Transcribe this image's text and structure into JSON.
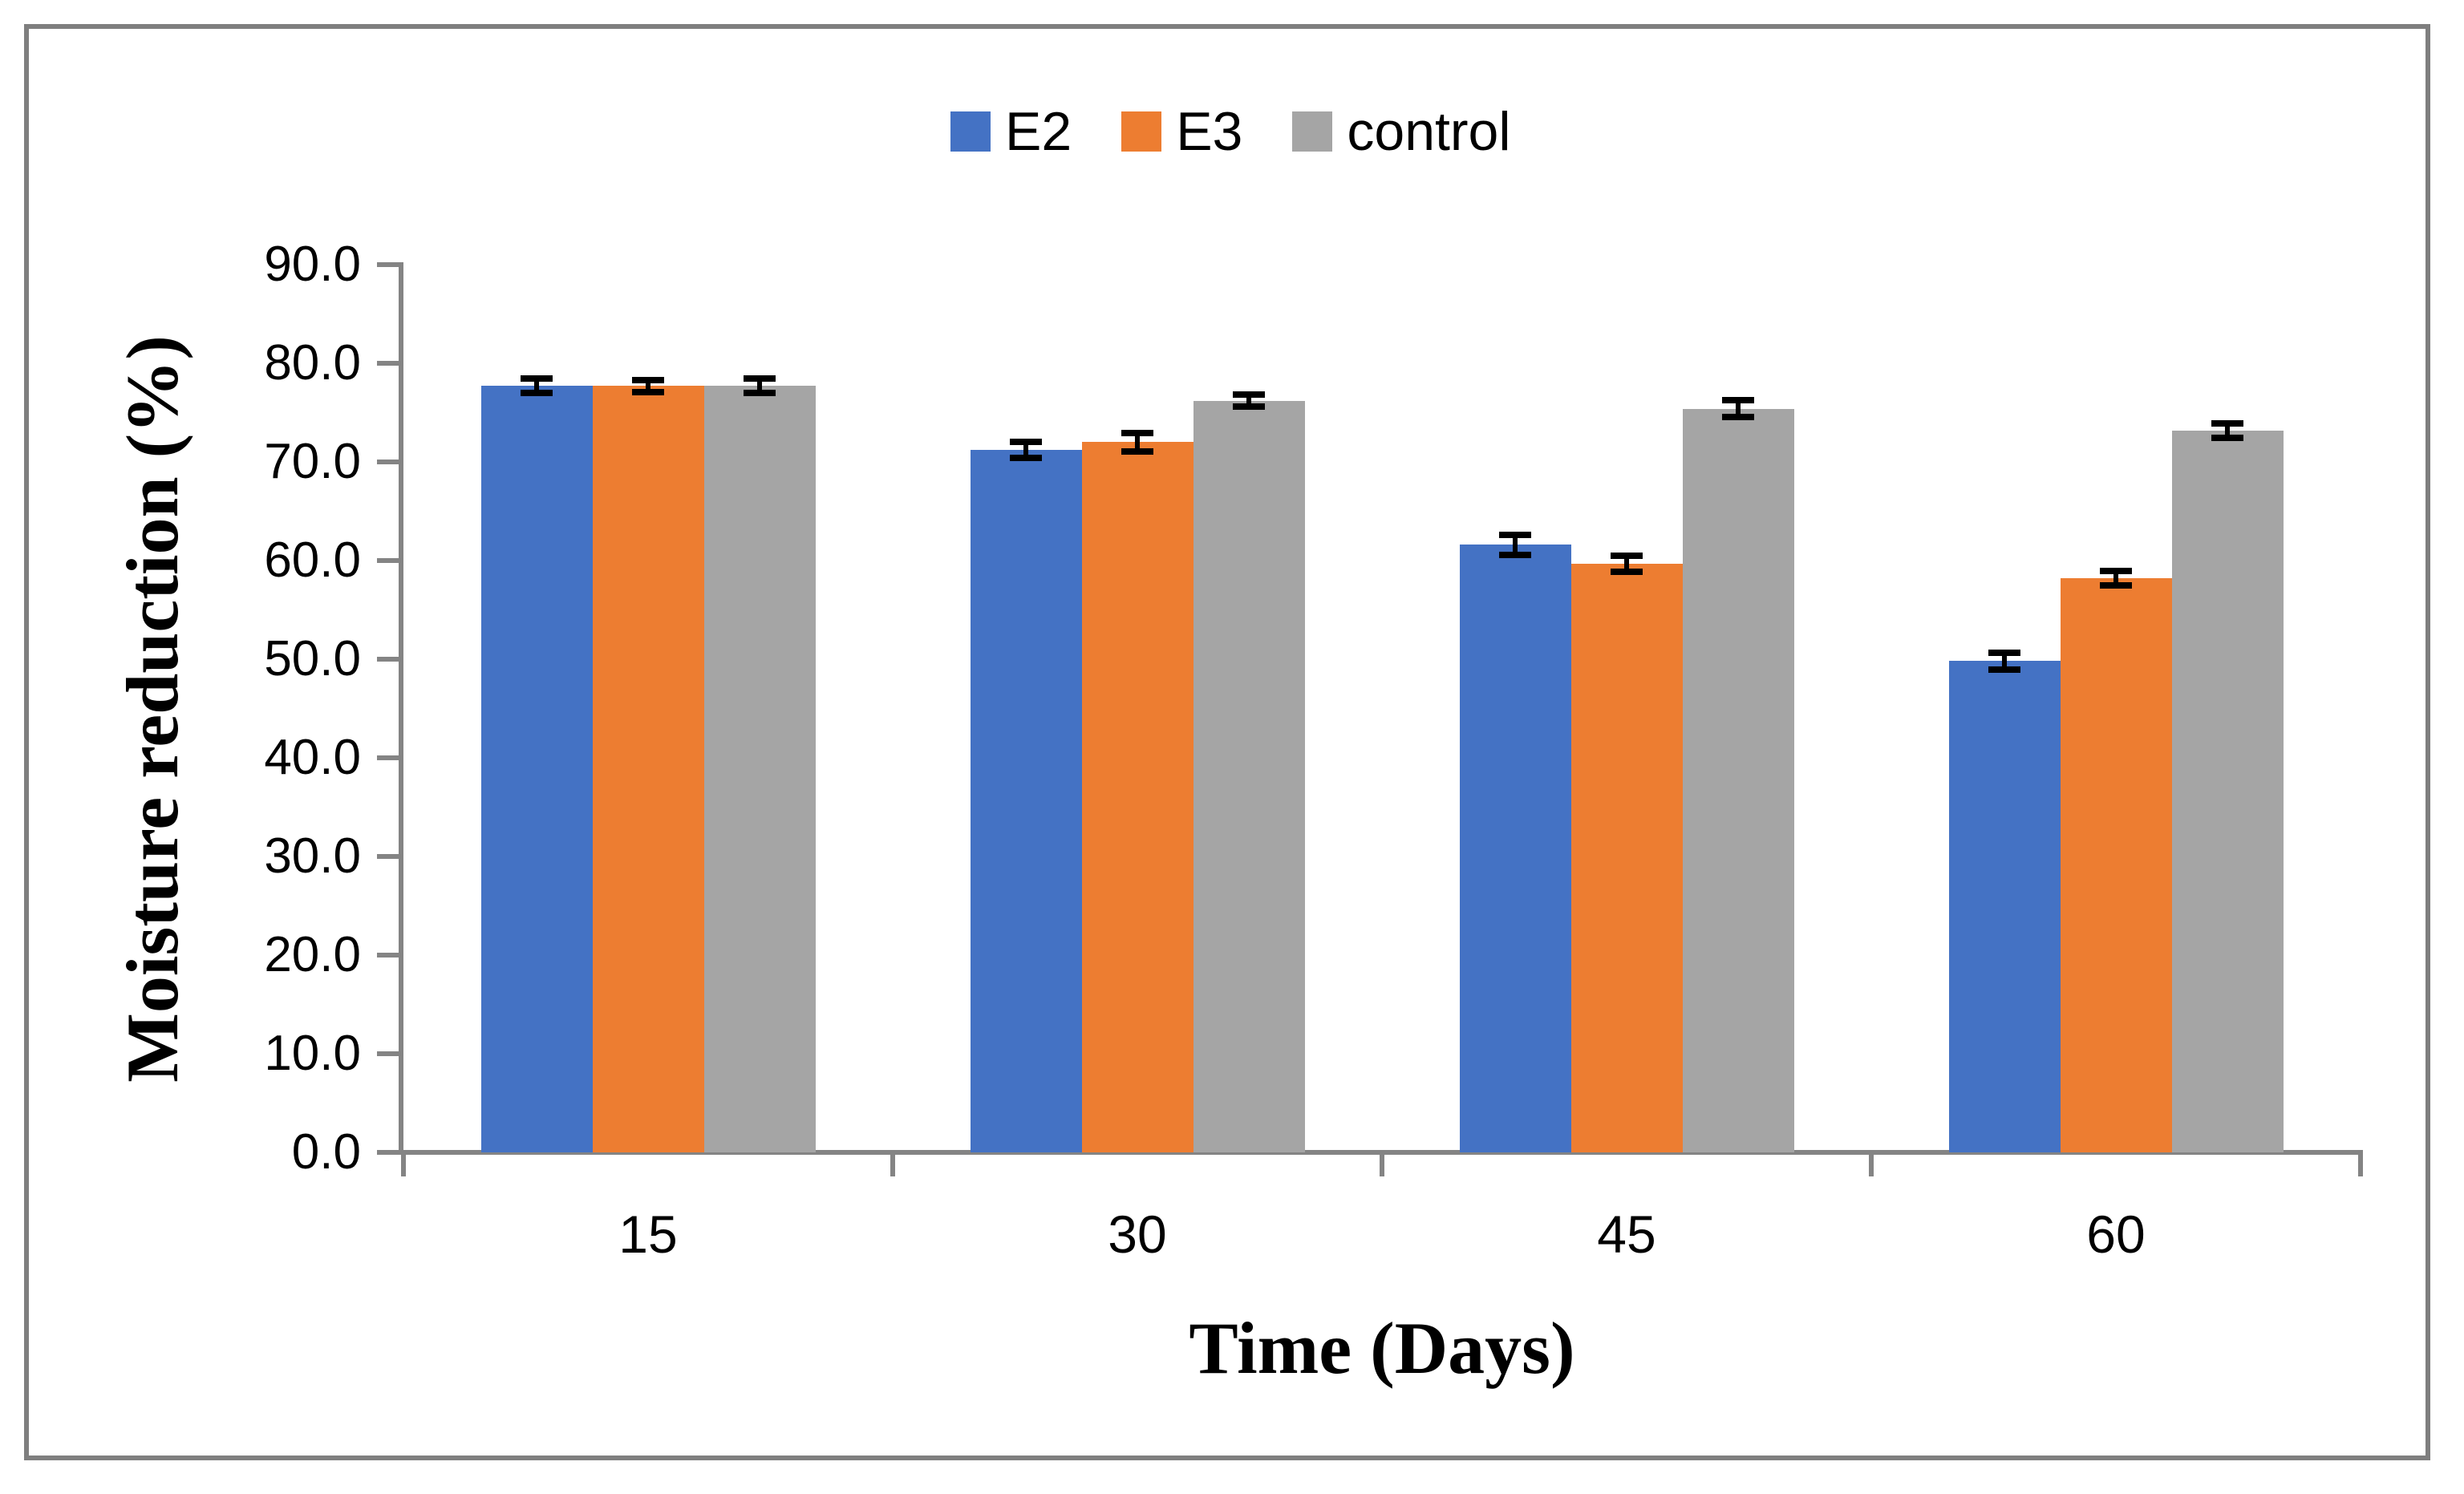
{
  "chart_data": {
    "type": "bar",
    "title": "",
    "xlabel": "Time (Days)",
    "ylabel": "Moisture reduction (%)",
    "categories": [
      "15",
      "30",
      "45",
      "60"
    ],
    "series": [
      {
        "name": "E2",
        "color": "#4472C4",
        "values": [
          77.7,
          71.2,
          61.6,
          49.8
        ],
        "errors": [
          0.4,
          0.5,
          0.7,
          0.5
        ]
      },
      {
        "name": "E3",
        "color": "#ED7D31",
        "values": [
          77.7,
          72.0,
          59.7,
          58.2
        ],
        "errors": [
          0.3,
          0.6,
          0.5,
          0.4
        ]
      },
      {
        "name": "control",
        "color": "#A5A5A5",
        "values": [
          77.7,
          76.2,
          75.4,
          73.2
        ],
        "errors": [
          0.4,
          0.3,
          0.5,
          0.4
        ]
      }
    ],
    "ylim": [
      0,
      90
    ],
    "ytick_step": 10,
    "yticks": [
      "0.0",
      "10.0",
      "20.0",
      "30.0",
      "40.0",
      "50.0",
      "60.0",
      "70.0",
      "80.0",
      "90.0"
    ],
    "legend_position": "top-center",
    "grid": false,
    "error_bars": true,
    "axis_color": "#848484",
    "error_bar_color": "#000000",
    "frame_border_color": "#7F7F7F"
  }
}
